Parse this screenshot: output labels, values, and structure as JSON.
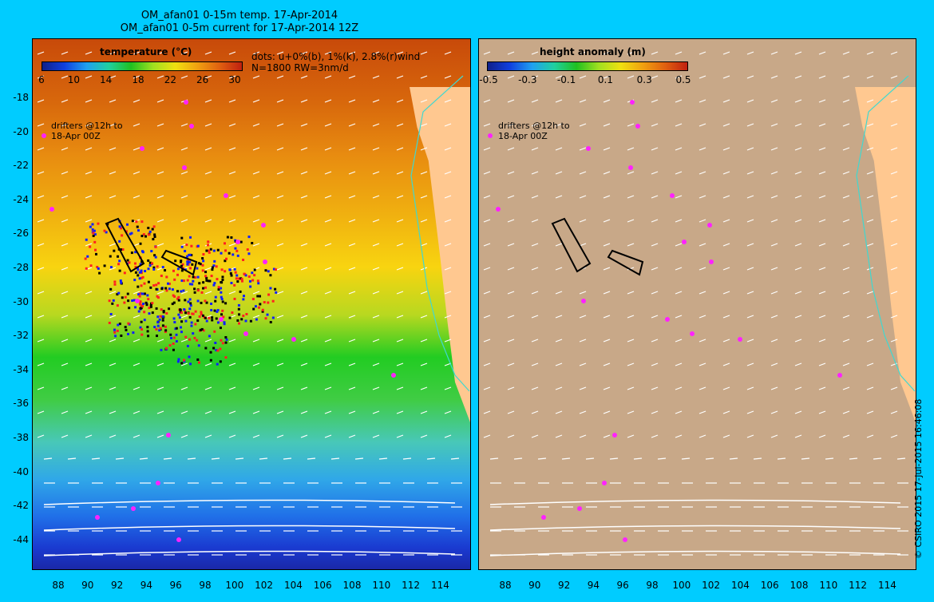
{
  "title_line1": "OM_afan01 0-15m temp. 17-Apr-2014",
  "title_line2": "OM_afan01 0-5m current for 17-Apr-2014 12Z",
  "left_panel": {
    "colorbar_title": "temperature (°C)",
    "colorbar_ticks": [
      "6",
      "10",
      "14",
      "18",
      "22",
      "26",
      "30"
    ],
    "dots_note_line1": "dots: u+0%(b), 1%(k), 2.8%(r)wind",
    "dots_note_line2": "N=1800 RW=3nm/d",
    "drifter_label_line1": "drifters @12h to",
    "drifter_label_line2": "18-Apr 00Z"
  },
  "right_panel": {
    "colorbar_title": "height anomaly (m)",
    "colorbar_ticks": [
      "-0.5",
      "-0.3",
      "-0.1",
      "0.1",
      "0.3",
      "0.5"
    ],
    "drifter_label_line1": "drifters @12h to",
    "drifter_label_line2": "18-Apr 00Z"
  },
  "y_ticks": [
    "-18",
    "-20",
    "-22",
    "-24",
    "-26",
    "-28",
    "-30",
    "-32",
    "-34",
    "-36",
    "-38",
    "-40",
    "-42",
    "-44"
  ],
  "x_ticks": [
    "88",
    "90",
    "92",
    "94",
    "96",
    "98",
    "100",
    "102",
    "104",
    "106",
    "108",
    "110",
    "112",
    "114"
  ],
  "copyright": "© CSIRO 2015  17-Jul-2015 16:46:08",
  "colors": {
    "background": "#00ccff",
    "land": "#ffc890",
    "ssh_bg": "#c8a888",
    "drifter": "#ff22ff",
    "coast_contour": "#40d8d0"
  }
}
